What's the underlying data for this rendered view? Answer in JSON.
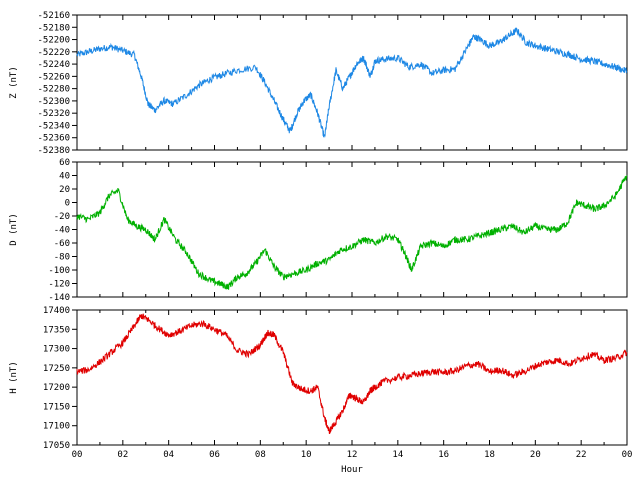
{
  "chart_data": [
    {
      "type": "line",
      "ylabel": "Z (nT)",
      "color": "#1e88e5",
      "ylim": [
        -52380,
        -52160
      ],
      "yticks": [
        -52160,
        -52180,
        -52200,
        -52220,
        -52240,
        -52260,
        -52280,
        -52300,
        -52320,
        -52340,
        -52360,
        -52380
      ],
      "series": [
        {
          "x": [
            0,
            0.5,
            1,
            1.5,
            2,
            2.5,
            2.8,
            3.1,
            3.4,
            3.8,
            4.2,
            4.8,
            5.3,
            5.8,
            6.3,
            7,
            7.8,
            8.2,
            8.6,
            9,
            9.3,
            9.6,
            9.9,
            10.2,
            10.5,
            10.8,
            11,
            11.3,
            11.6,
            11.9,
            12.2,
            12.5,
            12.8,
            13,
            13.4,
            14,
            14.5,
            15,
            15.5,
            16,
            16.5,
            17,
            17.3,
            17.6,
            18,
            18.4,
            18.8,
            19.2,
            19.6,
            20,
            20.5,
            21,
            21.5,
            22,
            22.5,
            23,
            23.5,
            24
          ],
          "values": [
            -52225,
            -52220,
            -52215,
            -52212,
            -52218,
            -52225,
            -52260,
            -52305,
            -52315,
            -52300,
            -52305,
            -52290,
            -52275,
            -52265,
            -52258,
            -52250,
            -52245,
            -52270,
            -52300,
            -52330,
            -52350,
            -52320,
            -52300,
            -52290,
            -52320,
            -52360,
            -52310,
            -52250,
            -52280,
            -52260,
            -52240,
            -52230,
            -52260,
            -52235,
            -52232,
            -52230,
            -52245,
            -52240,
            -52255,
            -52250,
            -52248,
            -52215,
            -52195,
            -52200,
            -52210,
            -52205,
            -52195,
            -52185,
            -52205,
            -52210,
            -52215,
            -52220,
            -52225,
            -52232,
            -52235,
            -52240,
            -52245,
            -52252
          ]
        }
      ]
    },
    {
      "type": "line",
      "ylabel": "D (nT)",
      "color": "#00b000",
      "ylim": [
        -140,
        60
      ],
      "yticks": [
        60,
        40,
        20,
        0,
        -20,
        -40,
        -60,
        -80,
        -100,
        -120,
        -140
      ],
      "series": [
        {
          "x": [
            0,
            0.5,
            1,
            1.4,
            1.8,
            2.2,
            2.6,
            3,
            3.4,
            3.8,
            4.3,
            4.8,
            5.3,
            5.8,
            6.2,
            6.6,
            7,
            7.4,
            7.8,
            8.2,
            8.6,
            9,
            9.5,
            10,
            10.5,
            11,
            11.5,
            12,
            12.5,
            13,
            13.5,
            14,
            14.3,
            14.6,
            15,
            15.5,
            16,
            16.5,
            17,
            17.5,
            18,
            18.5,
            19,
            19.5,
            20,
            20.5,
            21,
            21.4,
            21.8,
            22.2,
            22.6,
            23,
            23.5,
            24
          ],
          "values": [
            -20,
            -25,
            -15,
            10,
            18,
            -25,
            -35,
            -40,
            -55,
            -25,
            -55,
            -75,
            -105,
            -115,
            -120,
            -125,
            -110,
            -105,
            -90,
            -70,
            -95,
            -110,
            -105,
            -100,
            -90,
            -85,
            -70,
            -65,
            -55,
            -60,
            -50,
            -55,
            -75,
            -100,
            -65,
            -60,
            -65,
            -55,
            -55,
            -50,
            -45,
            -40,
            -35,
            -45,
            -35,
            -40,
            -40,
            -30,
            0,
            -5,
            -10,
            -5,
            10,
            40
          ]
        }
      ]
    },
    {
      "type": "line",
      "xlabel": "Hour",
      "ylabel": "H (nT)",
      "color": "#e00000",
      "ylim": [
        17050,
        17400
      ],
      "yticks": [
        17400,
        17350,
        17300,
        17250,
        17200,
        17150,
        17100,
        17050
      ],
      "xticks": [
        "00",
        "02",
        "04",
        "06",
        "08",
        "10",
        "12",
        "14",
        "16",
        "18",
        "20",
        "22",
        "00"
      ],
      "xlim": [
        0,
        24
      ],
      "series": [
        {
          "x": [
            0,
            0.5,
            1,
            1.5,
            2,
            2.4,
            2.8,
            3.1,
            3.5,
            4,
            4.5,
            5,
            5.5,
            6,
            6.5,
            7,
            7.5,
            8,
            8.3,
            8.6,
            9,
            9.4,
            9.8,
            10.2,
            10.5,
            10.8,
            11,
            11.3,
            11.6,
            11.9,
            12.2,
            12.5,
            12.8,
            13,
            13.4,
            14,
            14.5,
            15,
            15.5,
            16,
            16.5,
            17,
            17.5,
            18,
            18.5,
            19,
            19.5,
            20,
            20.5,
            21,
            21.5,
            22,
            22.5,
            23,
            23.5,
            24
          ],
          "values": [
            17240,
            17245,
            17265,
            17290,
            17315,
            17350,
            17385,
            17375,
            17355,
            17335,
            17345,
            17360,
            17365,
            17350,
            17335,
            17295,
            17285,
            17310,
            17340,
            17335,
            17290,
            17210,
            17195,
            17190,
            17200,
            17120,
            17085,
            17110,
            17140,
            17180,
            17170,
            17160,
            17190,
            17200,
            17215,
            17225,
            17230,
            17235,
            17240,
            17238,
            17242,
            17255,
            17260,
            17240,
            17245,
            17230,
            17240,
            17255,
            17265,
            17270,
            17260,
            17275,
            17285,
            17270,
            17275,
            17290
          ]
        }
      ]
    }
  ]
}
